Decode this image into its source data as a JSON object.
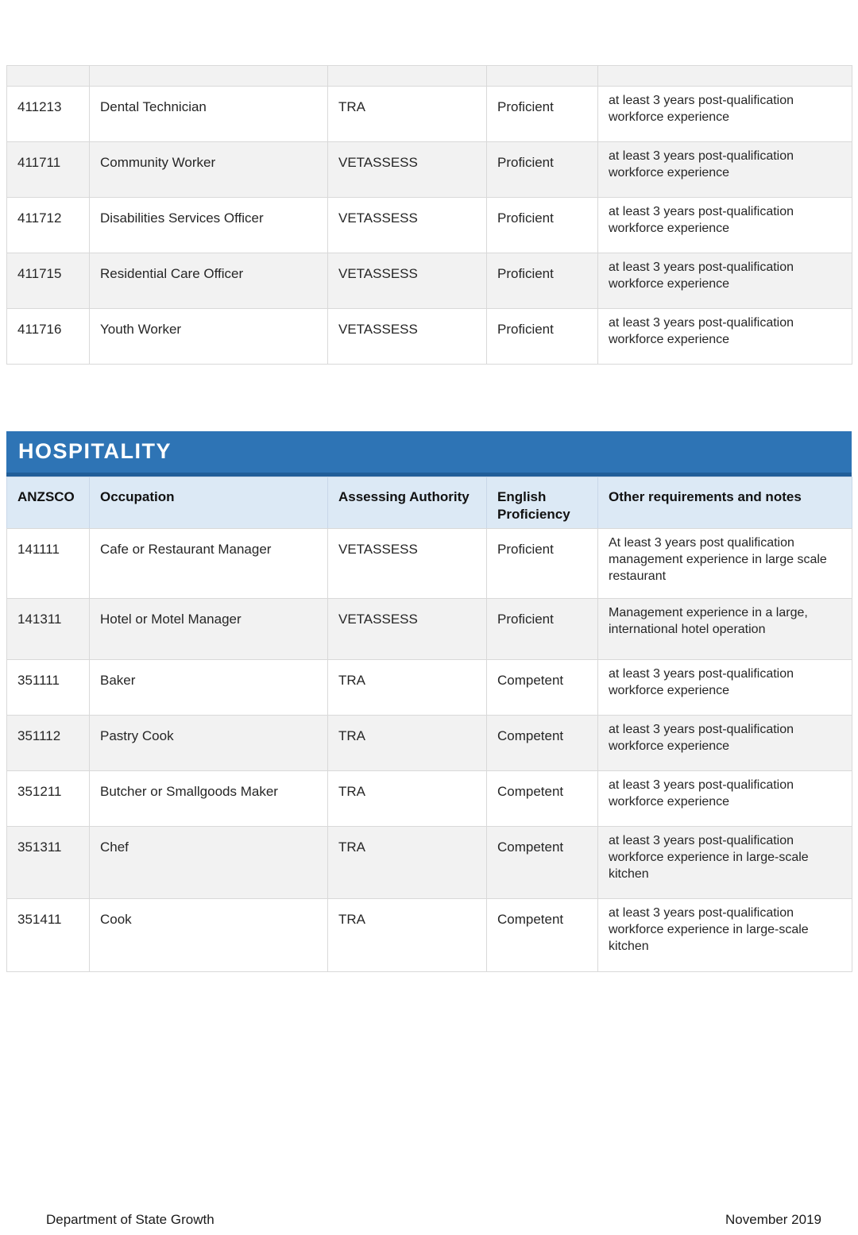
{
  "colors": {
    "banner_blue": "#2e74b5",
    "banner_bottom_edge": "#215e99",
    "table_header_bg": "#dce9f5",
    "row_alt_bg": "#f2f2f2",
    "grid_border": "#d9d9d9",
    "banner_text": "#ffffff",
    "body_text": "#262626"
  },
  "columns": {
    "anzsco": "ANZSCO",
    "occupation": "Occupation",
    "authority": "Assessing Authority",
    "english": "English Proficiency",
    "notes": "Other requirements and notes"
  },
  "tables": {
    "continued": {
      "rows": [
        {
          "anzsco": "411213",
          "occupation": "Dental Technician",
          "authority": "TRA",
          "english": "Proficient",
          "notes": "at least 3 years post-qualification workforce experience"
        },
        {
          "anzsco": "411711",
          "occupation": "Community Worker",
          "authority": "VETASSESS",
          "english": "Proficient",
          "notes": "at least 3 years post-qualification workforce experience"
        },
        {
          "anzsco": "411712",
          "occupation": "Disabilities Services Officer",
          "authority": "VETASSESS",
          "english": "Proficient",
          "notes": "at least 3 years post-qualification workforce experience"
        },
        {
          "anzsco": "411715",
          "occupation": "Residential Care Officer",
          "authority": "VETASSESS",
          "english": "Proficient",
          "notes": "at least 3 years post-qualification workforce experience"
        },
        {
          "anzsco": "411716",
          "occupation": "Youth Worker",
          "authority": "VETASSESS",
          "english": "Proficient",
          "notes": "at least 3 years post-qualification workforce experience"
        }
      ]
    },
    "hospitality": {
      "section_title": "HOSPITALITY",
      "rows": [
        {
          "anzsco": "141111",
          "occupation": "Cafe or Restaurant Manager",
          "authority": "VETASSESS",
          "english": "Proficient",
          "notes": "At least 3 years post qualification management experience in large scale restaurant"
        },
        {
          "anzsco": "141311",
          "occupation": "Hotel or Motel Manager",
          "authority": "VETASSESS",
          "english": "Proficient",
          "notes": "Management experience in a large, international hotel operation"
        },
        {
          "anzsco": "351111",
          "occupation": "Baker",
          "authority": "TRA",
          "english": "Competent",
          "notes": "at least 3 years post-qualification workforce experience"
        },
        {
          "anzsco": "351112",
          "occupation": "Pastry Cook",
          "authority": "TRA",
          "english": "Competent",
          "notes": "at least 3 years post-qualification workforce experience"
        },
        {
          "anzsco": "351211",
          "occupation": "Butcher or Smallgoods Maker",
          "authority": "TRA",
          "english": "Competent",
          "notes": "at least 3 years post-qualification workforce experience"
        },
        {
          "anzsco": "351311",
          "occupation": "Chef",
          "authority": "TRA",
          "english": "Competent",
          "notes": "at least 3 years post-qualification workforce experience in large-scale kitchen"
        },
        {
          "anzsco": "351411",
          "occupation": "Cook",
          "authority": "TRA",
          "english": "Competent",
          "notes": "at least 3 years post-qualification workforce experience in large-scale kitchen"
        }
      ]
    }
  },
  "footer": {
    "left": "Department of State Growth",
    "right": "November 2019"
  }
}
